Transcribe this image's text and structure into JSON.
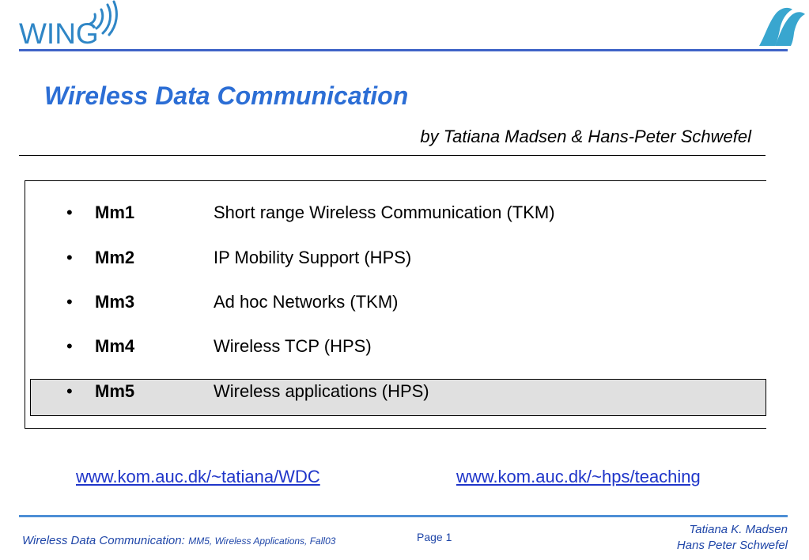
{
  "header": {
    "logo_text": "WING",
    "title": "Wireless Data Communication",
    "authors": "by Tatiana Madsen & Hans-Peter Schwefel"
  },
  "modules": [
    {
      "bullet": "•",
      "code": "Mm1",
      "title": "Short range Wireless Communication  (TKM)"
    },
    {
      "bullet": "•",
      "code": "Mm2",
      "title": "IP Mobility Support  (HPS)"
    },
    {
      "bullet": "•",
      "code": "Mm3",
      "title": "Ad hoc Networks (TKM)"
    },
    {
      "bullet": "•",
      "code": "Mm4",
      "title": "Wireless TCP (HPS)"
    },
    {
      "bullet": "•",
      "code": "Mm5",
      "title": "Wireless applications (HPS)"
    }
  ],
  "links": {
    "left": "www.kom.auc.dk/~tatiana/WDC",
    "right": "www.kom.auc.dk/~hps/teaching"
  },
  "footer": {
    "course": "Wireless Data Communication:",
    "lecture": "MM5, Wireless Applications, Fall03",
    "page": "Page 1",
    "author1": "Tatiana K. Madsen",
    "author2": "Hans Peter Schwefel"
  },
  "colors": {
    "title": "#2c6ed5",
    "logo": "#2f86c6",
    "header_rule": "#3f63c7",
    "highlight": "#e0e0e0",
    "link": "#1f35c9"
  },
  "icons": {
    "left_logo": "wing-logo-icon",
    "right_logo": "wave-logo-icon"
  }
}
